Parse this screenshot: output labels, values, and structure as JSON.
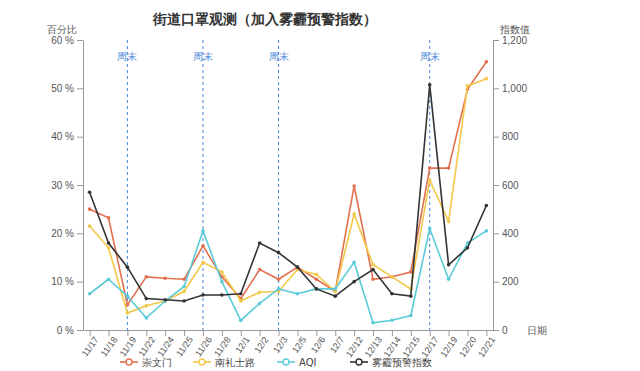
{
  "chart_data": {
    "type": "line",
    "title": "街道口罩观测（加入雾霾预警指数）",
    "y_label": "百分比",
    "y2_label": "指数值",
    "x_label": "日期",
    "categories": [
      "11/17",
      "11/18",
      "11/19",
      "11/22",
      "11/24",
      "11/25",
      "11/26",
      "11/28",
      "12/1",
      "12/2",
      "12/3",
      "12/5",
      "12/6",
      "12/7",
      "12/12",
      "12/13",
      "12/14",
      "12/15",
      "12/17",
      "12/19",
      "12/20",
      "12/21"
    ],
    "ylim": [
      0,
      60
    ],
    "yticks": [
      {
        "value": 0,
        "label": "0 %"
      },
      {
        "value": 10,
        "label": "10 %"
      },
      {
        "value": 20,
        "label": "20 %"
      },
      {
        "value": 30,
        "label": "30 %"
      },
      {
        "value": 40,
        "label": "40 %"
      },
      {
        "value": 50,
        "label": "50 %"
      },
      {
        "value": 60,
        "label": "60 %"
      }
    ],
    "y2lim": [
      0,
      1200
    ],
    "y2ticks": [
      0,
      200,
      400,
      600,
      800,
      {
        "value": 1000,
        "label": "1,000"
      },
      {
        "value": 1200,
        "label": "1,200"
      }
    ],
    "grid": false,
    "legend": "bottom",
    "marker": "circle",
    "annotations": [
      {
        "text": "周末",
        "x": "11/19"
      },
      {
        "text": "周末",
        "x": "11/26"
      },
      {
        "text": "周末",
        "x": "12/3"
      },
      {
        "text": "周末",
        "x": "12/17"
      }
    ],
    "series": [
      {
        "name": "崇文门",
        "color": "#e2704f",
        "values": [
          25,
          23.2,
          5.2,
          11,
          10.7,
          10.5,
          17.4,
          11,
          6.5,
          12.5,
          10.5,
          13,
          10.5,
          8,
          29.8,
          10.5,
          11,
          12,
          33.5,
          33.5,
          49.8,
          55.5
        ]
      },
      {
        "name": "南礼士路",
        "color": "#f3c74a",
        "values": [
          21.5,
          17,
          3.5,
          5,
          6,
          8,
          14,
          12,
          6,
          7.8,
          8,
          12.5,
          11.5,
          8,
          24,
          13.5,
          11,
          8.5,
          31,
          22.5,
          50.5,
          52
        ]
      },
      {
        "name": "AQI",
        "color": "#5ccbd9",
        "axis": "y2",
        "values": [
          150,
          210,
          140,
          50,
          120,
          180,
          410,
          200,
          40,
          110,
          170,
          150,
          170,
          170,
          280,
          30,
          40,
          60,
          420,
          210,
          360,
          410
        ]
      },
      {
        "name": "雾霾预警指数",
        "color": "#333333",
        "axis": "y2",
        "values": [
          570,
          360,
          260,
          130,
          125,
          120,
          145,
          145,
          150,
          360,
          320,
          260,
          170,
          140,
          200,
          250,
          150,
          140,
          1015,
          270,
          340,
          515
        ]
      }
    ]
  }
}
